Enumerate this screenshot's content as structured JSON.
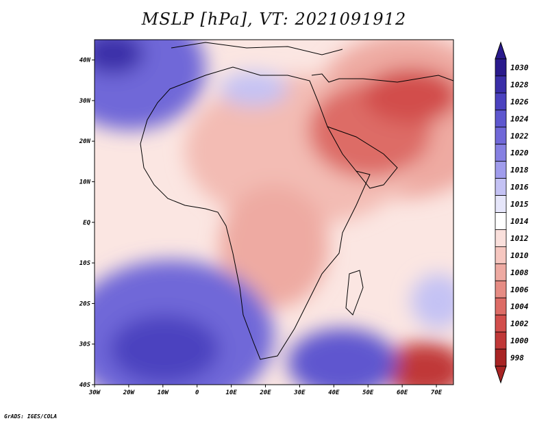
{
  "title": "MSLP [hPa], VT: 2021091912",
  "credit": "GrADS: IGES/COLA",
  "map": {
    "longitude_range": [
      -30,
      75
    ],
    "latitude_range": [
      -40,
      45
    ],
    "lon_ticks": [
      {
        "value": -30,
        "label": "30W"
      },
      {
        "value": -20,
        "label": "20W"
      },
      {
        "value": -10,
        "label": "10W"
      },
      {
        "value": 0,
        "label": "0"
      },
      {
        "value": 10,
        "label": "10E"
      },
      {
        "value": 20,
        "label": "20E"
      },
      {
        "value": 30,
        "label": "30E"
      },
      {
        "value": 40,
        "label": "40E"
      },
      {
        "value": 50,
        "label": "50E"
      },
      {
        "value": 60,
        "label": "60E"
      },
      {
        "value": 70,
        "label": "70E"
      }
    ],
    "lat_ticks": [
      {
        "value": 40,
        "label": "40N"
      },
      {
        "value": 30,
        "label": "30N"
      },
      {
        "value": 20,
        "label": "20N"
      },
      {
        "value": 10,
        "label": "10N"
      },
      {
        "value": 0,
        "label": "EQ"
      },
      {
        "value": -10,
        "label": "10S"
      },
      {
        "value": -20,
        "label": "20S"
      },
      {
        "value": -30,
        "label": "30S"
      },
      {
        "value": -40,
        "label": "40S"
      }
    ],
    "pressure_systems": [
      {
        "name": "south-atlantic-high",
        "lon": -17,
        "lat": -31,
        "value": 1026
      },
      {
        "name": "north-atlantic-high",
        "lon": -27,
        "lat": 44,
        "value": 1028
      },
      {
        "name": "indian-ocean-high-west",
        "lon": 40,
        "lat": -37,
        "value": 1024
      },
      {
        "name": "arabian-low",
        "lon": 47,
        "lat": 21,
        "value": 1004
      },
      {
        "name": "iran-low",
        "lon": 63,
        "lat": 30,
        "value": 1004
      },
      {
        "name": "southern-ocean-low",
        "lon": 70,
        "lat": -39,
        "value": 998
      }
    ]
  },
  "colorbar": {
    "levels": [
      "1030",
      "1028",
      "1026",
      "1024",
      "1022",
      "1020",
      "1018",
      "1016",
      "1015",
      "1014",
      "1012",
      "1010",
      "1008",
      "1006",
      "1004",
      "1002",
      "1000",
      "998"
    ],
    "colors": [
      "#2a1a8c",
      "#3a2ea8",
      "#4b42bf",
      "#5e57cf",
      "#7068d8",
      "#8680e2",
      "#a09cec",
      "#c4c2f4",
      "#e6e6fa",
      "#ffffff",
      "#fae0dc",
      "#f6c7c0",
      "#eeaaa2",
      "#e68c84",
      "#dd6c66",
      "#d24e4c",
      "#c03838",
      "#a82424"
    ]
  }
}
